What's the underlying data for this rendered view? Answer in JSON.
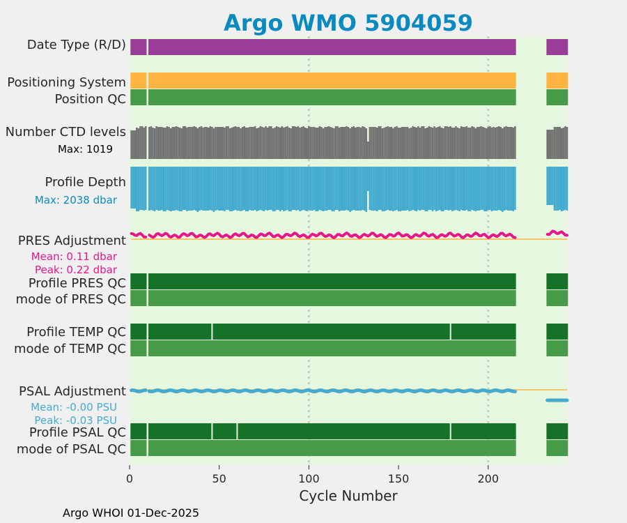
{
  "footer": "Argo WHOI 01-Dec-2025",
  "colors": {
    "background": "#f0f0f0",
    "panel": "#e6f7df",
    "purple": "#993d99",
    "orange": "#ffb340",
    "qc_dark": "#157228",
    "qc_light": "#479a47",
    "gray": "#737373",
    "blue": "#43abcf",
    "magenta": "#e6168c",
    "title": "#0b8ac0",
    "grid": "#c8c8c8"
  },
  "chart_data": {
    "type": "bar",
    "title": "Argo WMO 5904059",
    "xlabel": "Cycle Number",
    "xlim": [
      0,
      244
    ],
    "xticks": [
      0,
      50,
      100,
      150,
      200
    ],
    "vertical_gridlines": [
      100,
      200
    ],
    "data_gaps": [
      10,
      216,
      217,
      218,
      219,
      220,
      221,
      222,
      223,
      224,
      225,
      226,
      227,
      228,
      229,
      230,
      231,
      232
    ],
    "last_cycle": 244,
    "rows": [
      {
        "label": "Date Type (R/D)",
        "color": "purple"
      },
      {
        "label": "Positioning System",
        "color": "orange"
      },
      {
        "label": "Position QC",
        "color": "qc_light"
      },
      {
        "label": "Number CTD levels",
        "note": "Max: 1019",
        "max": 1019,
        "typical": 950,
        "color": "gray"
      },
      {
        "label": "Profile Depth",
        "note": "Max: 2038 dbar",
        "max_dbar": 2038,
        "color": "blue"
      },
      {
        "label": "PRES Adjustment",
        "notes": [
          "Mean: 0.11 dbar",
          "Peak: 0.22 dbar"
        ],
        "mean": 0.11,
        "peak": 0.22,
        "unit": "dbar",
        "color": "magenta"
      },
      {
        "label": "Profile PRES QC",
        "color": "qc_dark"
      },
      {
        "label": "mode of PRES QC",
        "color": "qc_light"
      },
      {
        "label": "Profile TEMP QC",
        "color": "qc_dark",
        "breaks": [
          46,
          179
        ]
      },
      {
        "label": "mode of TEMP QC",
        "color": "qc_light"
      },
      {
        "label": "PSAL Adjustment",
        "notes": [
          "Mean: -0.00 PSU",
          "Peak: -0.03 PSU"
        ],
        "mean": -0.0,
        "peak": -0.03,
        "unit": "PSU",
        "color": "blue"
      },
      {
        "label": "Profile PSAL QC",
        "color": "qc_dark",
        "breaks": [
          46,
          60,
          179
        ]
      },
      {
        "label": "mode of PSAL QC",
        "color": "qc_light"
      }
    ]
  }
}
